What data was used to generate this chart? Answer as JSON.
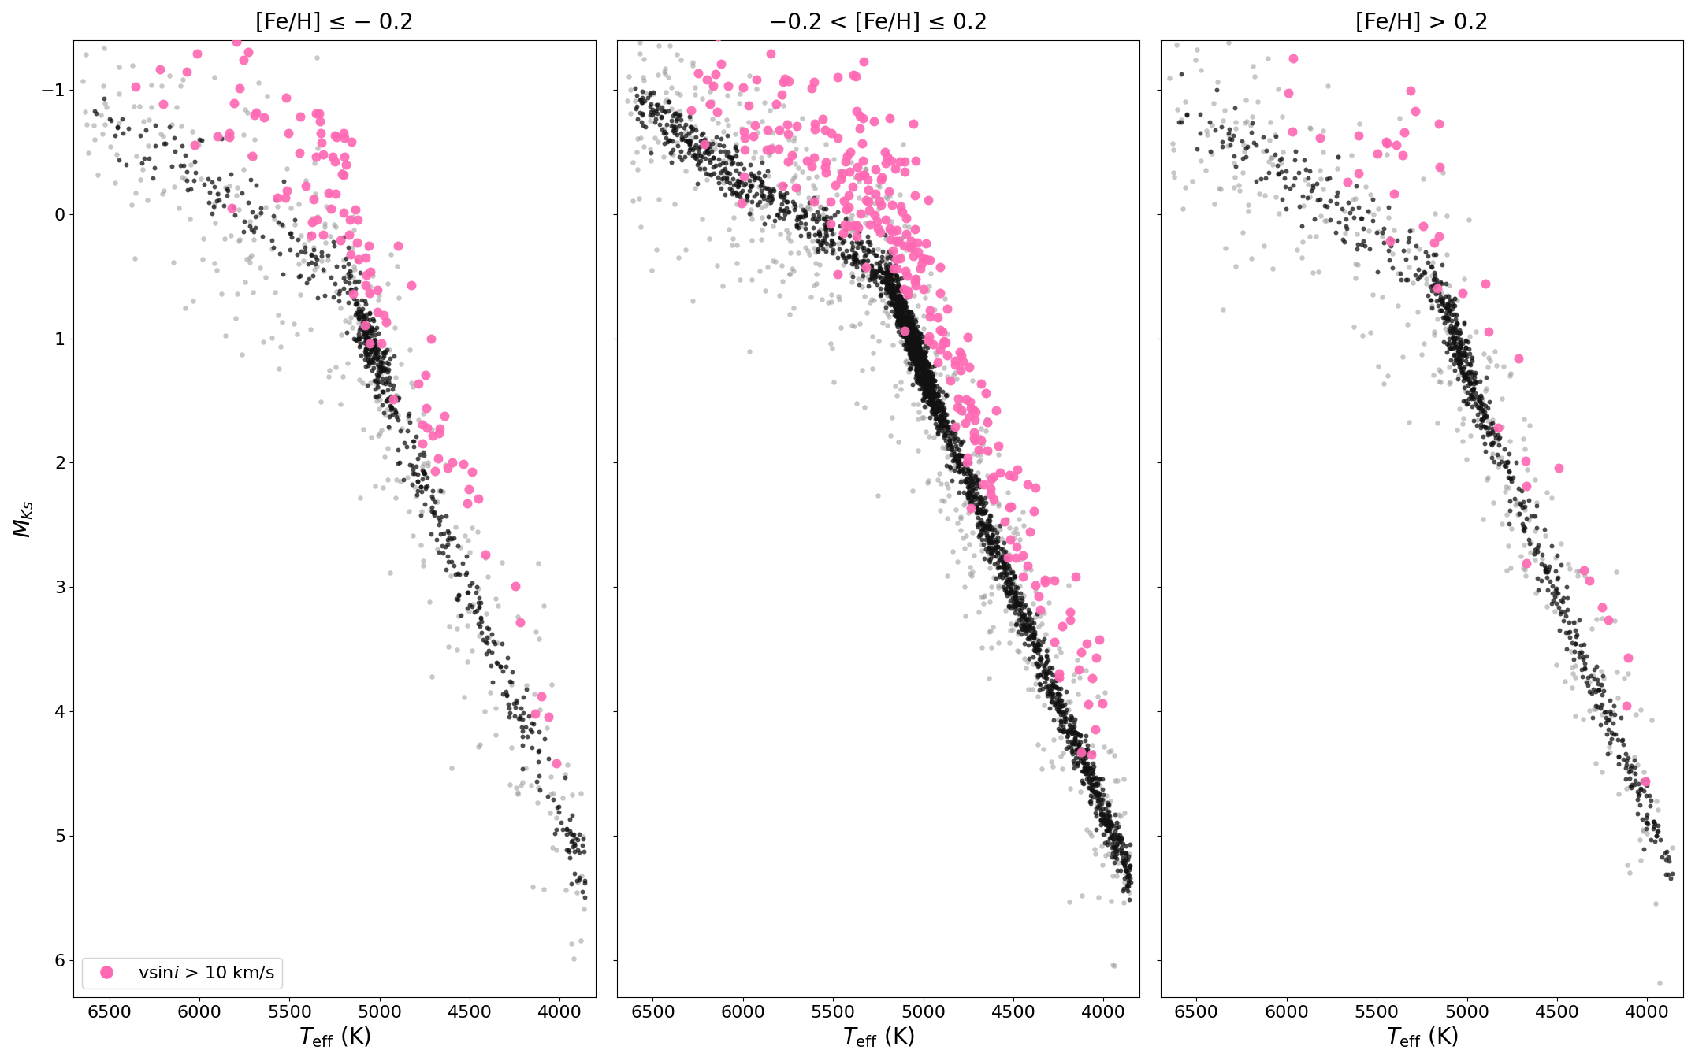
{
  "titles": [
    "[Fe/H] ≤ − 0.2",
    "−0.2 < [Fe/H] ≤ 0.2",
    "[Fe/H] > 0.2"
  ],
  "xlabel": "$T_{\\mathrm{eff}}$ (K)",
  "ylabel": "$M_{Ks}$",
  "xlim": [
    6700,
    3800
  ],
  "ylim": [
    6.3,
    -1.4
  ],
  "xticks": [
    6500,
    6000,
    5500,
    5000,
    4500,
    4000
  ],
  "yticks": [
    -1,
    0,
    1,
    2,
    3,
    4,
    5,
    6
  ],
  "legend_label": "vsin$i$ > 10 km/s",
  "pink_color": "#FF69B4",
  "dark_color": "#111111",
  "gray_color": "#999999",
  "bg_color": "#ffffff",
  "figsize": [
    21.51,
    13.47
  ],
  "dpi": 100,
  "title_fontsize": 20,
  "label_fontsize": 20,
  "tick_fontsize": 16,
  "legend_fontsize": 16
}
